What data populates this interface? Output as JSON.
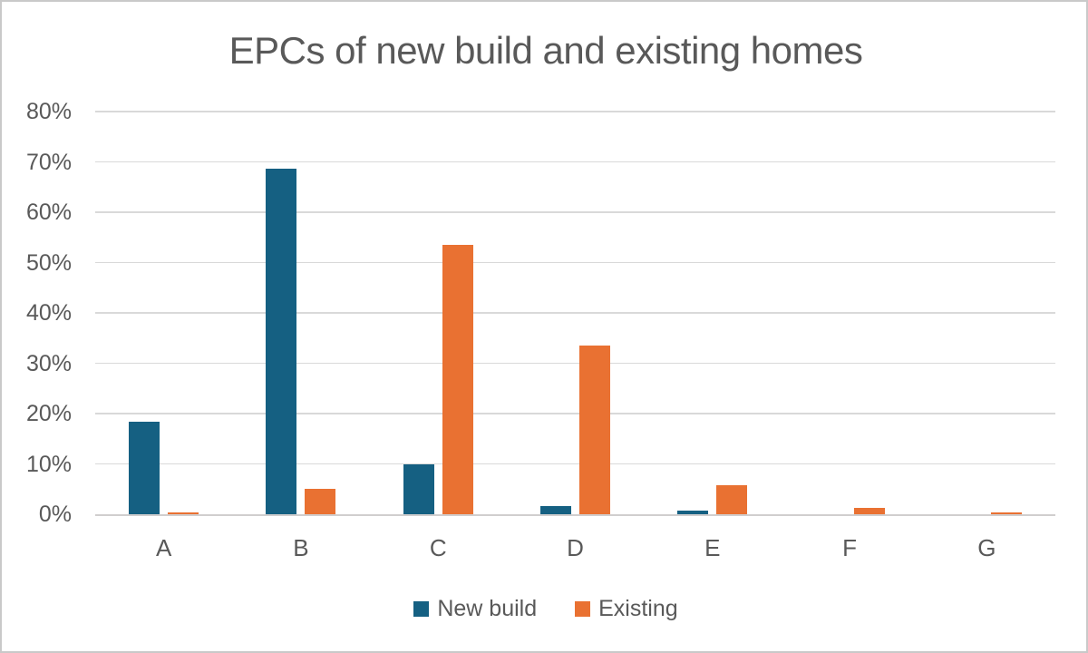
{
  "title": "EPCs of new build and existing homes",
  "chart_data": {
    "type": "bar",
    "title": "EPCs of new build and existing homes",
    "categories": [
      "A",
      "B",
      "C",
      "D",
      "E",
      "F",
      "G"
    ],
    "series": [
      {
        "name": "New build",
        "color": "#156082",
        "values": [
          18.4,
          68.6,
          10.0,
          1.7,
          0.8,
          0,
          0
        ]
      },
      {
        "name": "Existing",
        "color": "#E97132",
        "values": [
          0.4,
          5.1,
          53.5,
          33.6,
          5.7,
          1.3,
          0.4
        ]
      }
    ],
    "xlabel": "",
    "ylabel": "",
    "ylim": [
      0,
      80
    ],
    "ytick_step": 10,
    "yticks": [
      {
        "value": 0,
        "label": "0%"
      },
      {
        "value": 10,
        "label": "10%"
      },
      {
        "value": 20,
        "label": "20%"
      },
      {
        "value": 30,
        "label": "30%"
      },
      {
        "value": 40,
        "label": "40%"
      },
      {
        "value": 50,
        "label": "50%"
      },
      {
        "value": 60,
        "label": "60%"
      },
      {
        "value": 70,
        "label": "70%"
      },
      {
        "value": 80,
        "label": "80%"
      }
    ],
    "grid": true,
    "legend_position": "bottom"
  },
  "colors": {
    "text": "#595959",
    "gridline": "#d9d9d9",
    "axis_line": "#d0cece",
    "frame_border": "#c9c9c9",
    "background": "#ffffff"
  }
}
